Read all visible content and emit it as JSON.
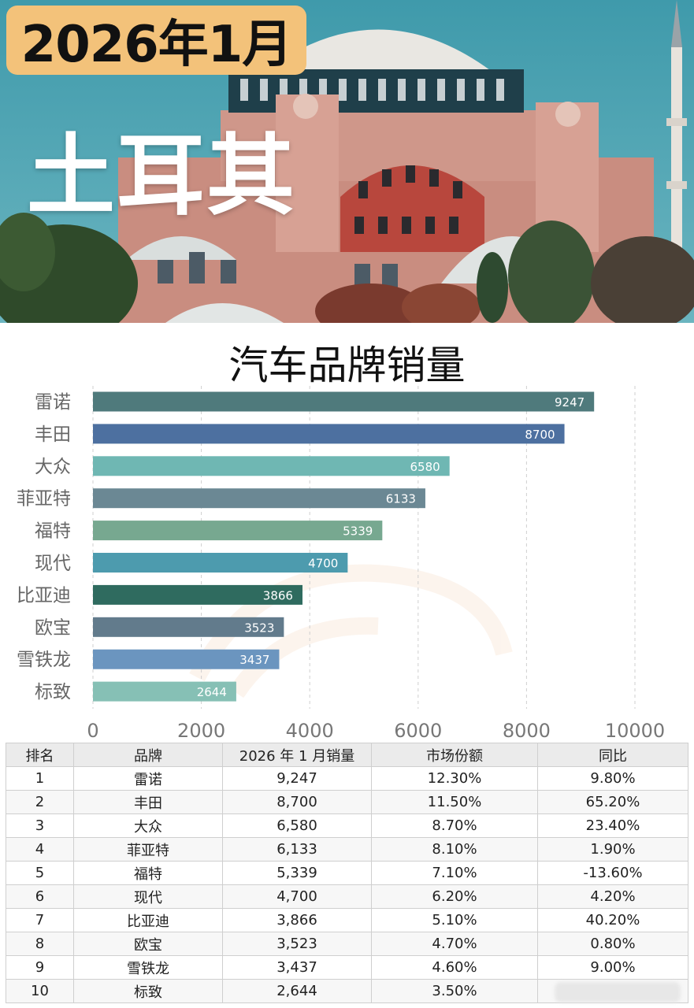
{
  "header": {
    "date_badge": "2026年1月",
    "country": "土耳其"
  },
  "colors": {
    "badge": "#f3c27a",
    "sky": "#4a9fb0"
  },
  "chart_data": {
    "type": "bar",
    "orientation": "horizontal",
    "title": "汽车品牌销量",
    "categories": [
      "雷诺",
      "丰田",
      "大众",
      "菲亚特",
      "福特",
      "现代",
      "比亚迪",
      "欧宝",
      "雪铁龙",
      "标致"
    ],
    "values": [
      9247,
      8700,
      6580,
      6133,
      5339,
      4700,
      3866,
      3523,
      3437,
      2644
    ],
    "colors": [
      "#4f7a7c",
      "#4d70a0",
      "#6fb7b3",
      "#6b8894",
      "#77a890",
      "#4d9bae",
      "#2f6b5f",
      "#627b8c",
      "#6b95bf",
      "#86c0b5"
    ],
    "xlim": [
      0,
      10000
    ],
    "xticks": [
      0,
      2000,
      4000,
      6000,
      8000,
      10000
    ],
    "grid": true,
    "xlabel": "",
    "ylabel": ""
  },
  "table": {
    "headers": [
      "排名",
      "品牌",
      "2026 年 1 月销量",
      "市场份额",
      "同比"
    ],
    "rows": [
      [
        "1",
        "雷诺",
        "9,247",
        "12.30%",
        "9.80%"
      ],
      [
        "2",
        "丰田",
        "8,700",
        "11.50%",
        "65.20%"
      ],
      [
        "3",
        "大众",
        "6,580",
        "8.70%",
        "23.40%"
      ],
      [
        "4",
        "菲亚特",
        "6,133",
        "8.10%",
        "1.90%"
      ],
      [
        "5",
        "福特",
        "5,339",
        "7.10%",
        "-13.60%"
      ],
      [
        "6",
        "现代",
        "4,700",
        "6.20%",
        "4.20%"
      ],
      [
        "7",
        "比亚迪",
        "3,866",
        "5.10%",
        "40.20%"
      ],
      [
        "8",
        "欧宝",
        "3,523",
        "4.70%",
        "0.80%"
      ],
      [
        "9",
        "雪铁龙",
        "3,437",
        "4.60%",
        "9.00%"
      ],
      [
        "10",
        "标致",
        "2,644",
        "3.50%",
        ""
      ]
    ]
  }
}
